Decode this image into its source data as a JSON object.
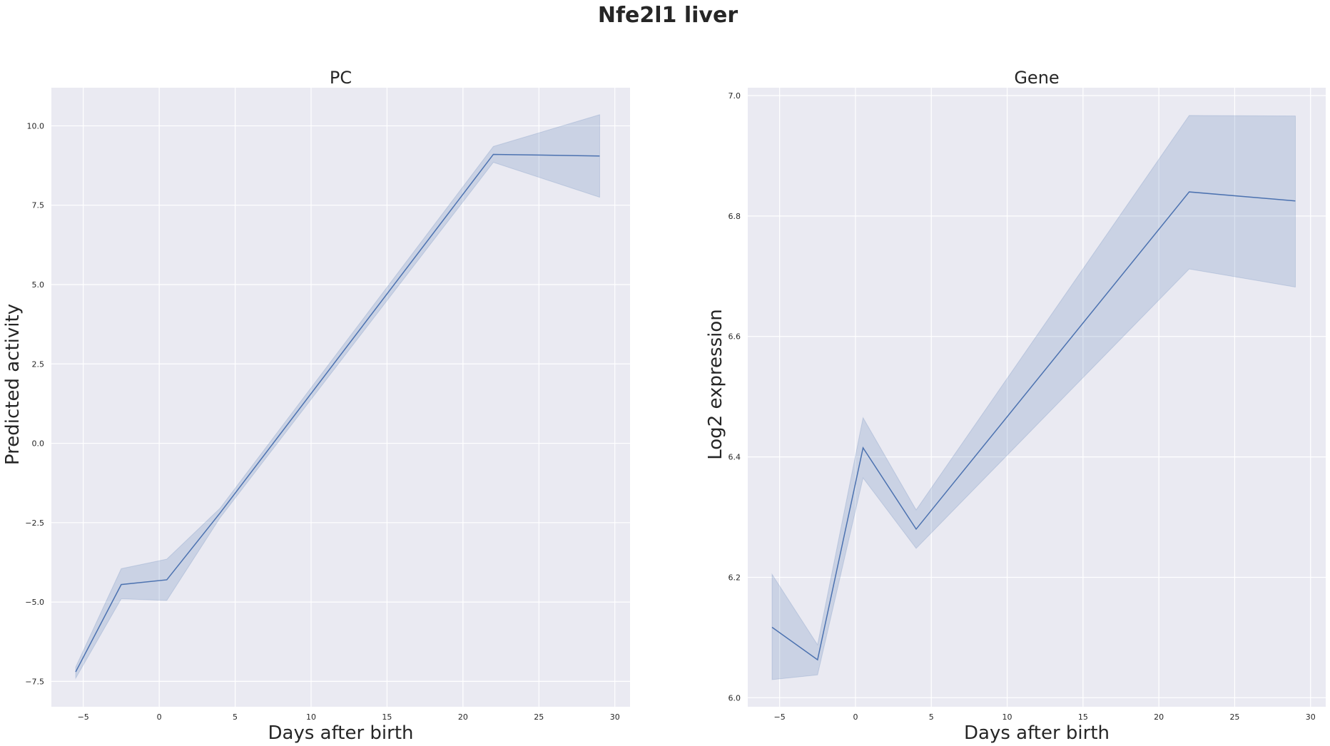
{
  "figure": {
    "title": "Nfe2l1 liver"
  },
  "chart_data": [
    {
      "type": "line",
      "title": "PC",
      "xlabel": "Days after birth",
      "ylabel": "Predicted activity",
      "xlim": [
        -7.1,
        31.0
      ],
      "ylim": [
        -8.3,
        11.2
      ],
      "xticks": [
        -5,
        0,
        5,
        10,
        15,
        20,
        25,
        30
      ],
      "xtick_labels": [
        "−5",
        "0",
        "5",
        "10",
        "15",
        "20",
        "25",
        "30"
      ],
      "yticks": [
        -7.5,
        -5.0,
        -2.5,
        0.0,
        2.5,
        5.0,
        7.5,
        10.0
      ],
      "ytick_labels": [
        "−7.5",
        "−5.0",
        "−2.5",
        "0.0",
        "2.5",
        "5.0",
        "7.5",
        "10.0"
      ],
      "grid": true,
      "series": [
        {
          "x": [
            -5.5,
            -2.5,
            0.5,
            4,
            22,
            29
          ],
          "y": [
            -7.2,
            -4.45,
            -4.3,
            -2.2,
            9.1,
            9.05
          ],
          "ci_low": [
            -7.4,
            -4.9,
            -4.95,
            -2.35,
            8.85,
            7.75
          ],
          "ci_high": [
            -7.05,
            -3.95,
            -3.65,
            -2.05,
            9.35,
            10.35
          ],
          "color": "#4c72b0"
        }
      ]
    },
    {
      "type": "line",
      "title": "Gene",
      "xlabel": "Days after birth",
      "ylabel": "Log2 expression",
      "xlim": [
        -7.1,
        31.0
      ],
      "ylim": [
        5.985,
        7.013
      ],
      "xticks": [
        -5,
        0,
        5,
        10,
        15,
        20,
        25,
        30
      ],
      "xtick_labels": [
        "−5",
        "0",
        "5",
        "10",
        "15",
        "20",
        "25",
        "30"
      ],
      "yticks": [
        6.0,
        6.2,
        6.4,
        6.6,
        6.8,
        7.0
      ],
      "ytick_labels": [
        "6.0",
        "6.2",
        "6.4",
        "6.6",
        "6.8",
        "7.0"
      ],
      "grid": true,
      "series": [
        {
          "x": [
            -5.5,
            -2.5,
            0.5,
            4,
            22,
            29
          ],
          "y": [
            6.117,
            6.063,
            6.415,
            6.28,
            6.84,
            6.825
          ],
          "ci_low": [
            6.03,
            6.038,
            6.365,
            6.248,
            6.712,
            6.682
          ],
          "ci_high": [
            6.205,
            6.088,
            6.465,
            6.312,
            6.967,
            6.966
          ],
          "color": "#4c72b0"
        }
      ]
    }
  ]
}
